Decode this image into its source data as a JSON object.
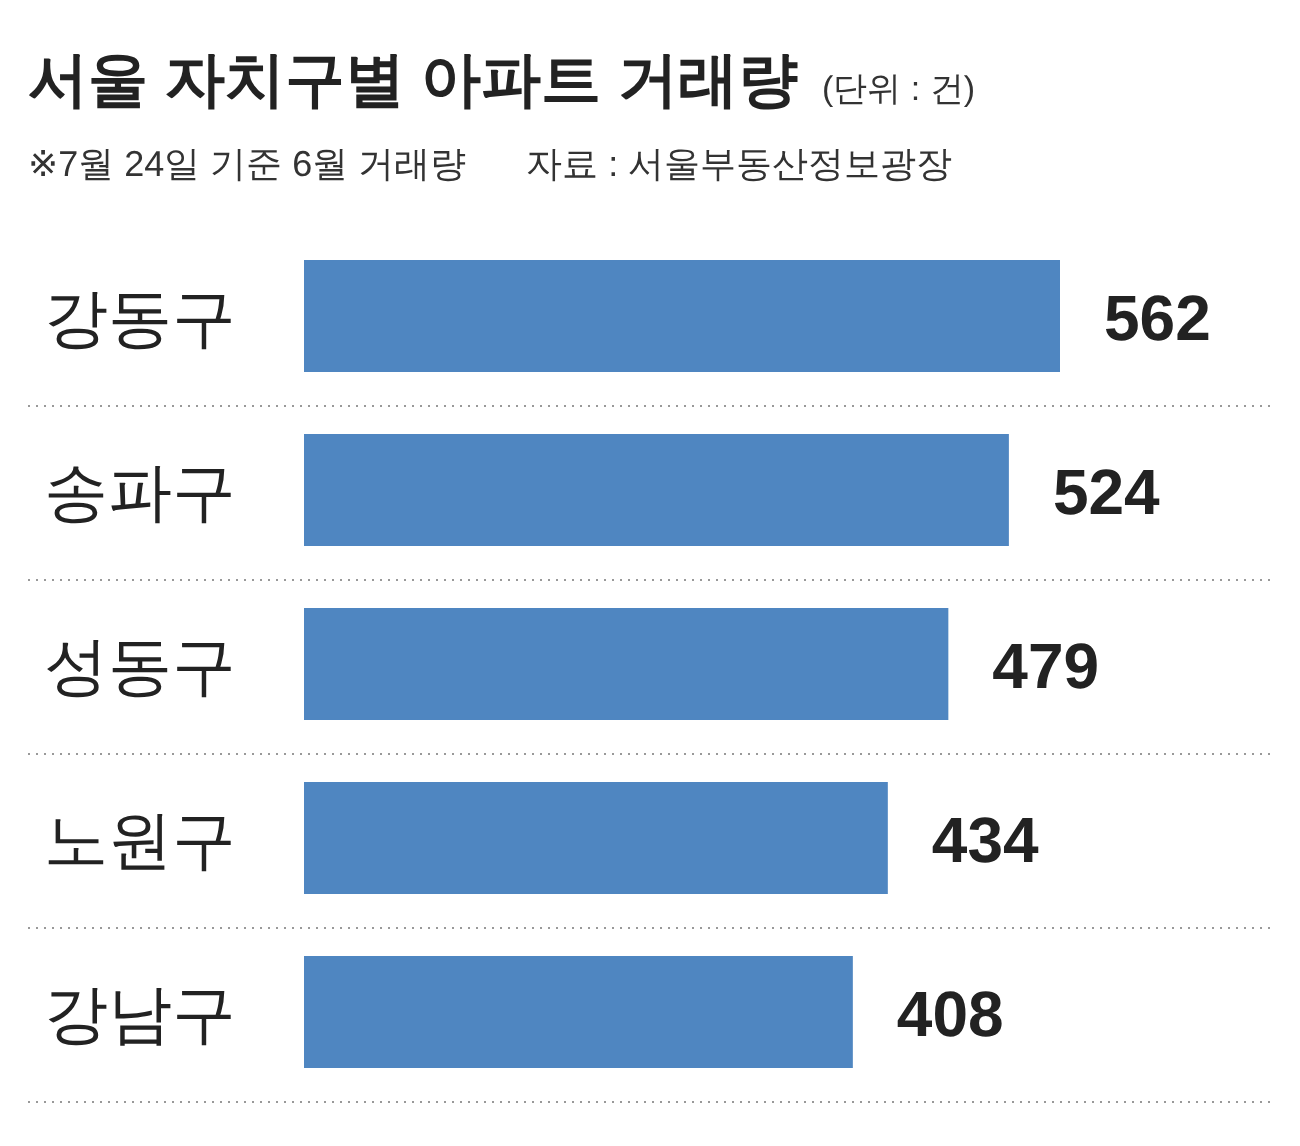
{
  "chart_data": {
    "type": "bar",
    "orientation": "horizontal",
    "title": "서울 자치구별 아파트 거래량",
    "subtitle": "(단위 : 건)",
    "annotations": [
      "※7월 24일 기준 6월 거래량",
      "자료 : 서울부동산정보광장"
    ],
    "categories": [
      "강동구",
      "송파구",
      "성동구",
      "노원구",
      "강남구"
    ],
    "values": [
      562,
      524,
      479,
      434,
      408
    ],
    "color": "#4f86c1",
    "data_labels": true
  }
}
